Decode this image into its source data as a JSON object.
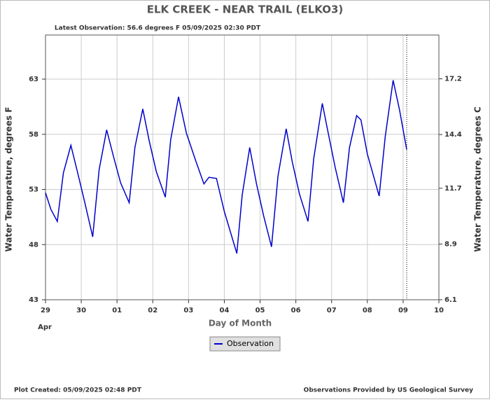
{
  "chart_data": {
    "type": "line",
    "title": "ELK CREEK - NEAR TRAIL  (ELKO3)",
    "subtitle": "Latest Observation: 56.6 degrees F  05/09/2025 02:30 PDT",
    "x_label": "Day of Month",
    "x_sublabel": "Apr",
    "y_label": "Water Temperature, degrees F",
    "y2_label": "Water Temperature, degrees C",
    "footer_left": "Plot Created: 05/09/2025 02:48 PDT",
    "footer_right": "Observations Provided by US Geological Survey",
    "xlim": [
      0,
      11
    ],
    "xticks": [
      {
        "value": 0,
        "label": "29"
      },
      {
        "value": 1,
        "label": "30"
      },
      {
        "value": 2,
        "label": "01"
      },
      {
        "value": 3,
        "label": "02"
      },
      {
        "value": 4,
        "label": "03"
      },
      {
        "value": 5,
        "label": "04"
      },
      {
        "value": 6,
        "label": "05"
      },
      {
        "value": 7,
        "label": "06"
      },
      {
        "value": 8,
        "label": "07"
      },
      {
        "value": 9,
        "label": "08"
      },
      {
        "value": 10,
        "label": "09"
      },
      {
        "value": 11,
        "label": "10"
      }
    ],
    "ylim": [
      43,
      67
    ],
    "yticks": [
      43,
      48,
      53,
      58,
      63
    ],
    "y2lim": [
      6.1,
      19.4
    ],
    "y2ticks": [
      6.1,
      8.9,
      11.7,
      14.4,
      17.2
    ],
    "grid": true,
    "latest_x": 10.1,
    "x": [
      0,
      0.15,
      0.33,
      0.5,
      0.71,
      0.9,
      1.1,
      1.32,
      1.5,
      1.71,
      1.9,
      2.1,
      2.34,
      2.5,
      2.72,
      2.9,
      3.1,
      3.35,
      3.5,
      3.72,
      3.94,
      4.2,
      4.43,
      4.57,
      4.78,
      5.0,
      5.35,
      5.5,
      5.71,
      5.9,
      6.1,
      6.32,
      6.5,
      6.73,
      6.9,
      7.1,
      7.34,
      7.5,
      7.74,
      7.9,
      8.1,
      8.33,
      8.5,
      8.7,
      8.82,
      9.0,
      9.33,
      9.5,
      9.72,
      9.9,
      10.1
    ],
    "series": [
      {
        "name": "Observation",
        "color": "#0000cc",
        "values": [
          52.7,
          51.2,
          50.1,
          54.5,
          57.0,
          54.5,
          51.8,
          48.7,
          54.8,
          58.4,
          56.0,
          53.6,
          51.8,
          56.8,
          60.3,
          57.4,
          54.6,
          52.3,
          57.5,
          61.4,
          58.1,
          55.6,
          53.5,
          54.1,
          54.0,
          51.0,
          47.2,
          52.5,
          56.8,
          53.5,
          50.6,
          47.8,
          54.2,
          58.5,
          55.5,
          52.6,
          50.1,
          55.8,
          60.8,
          58.2,
          55.0,
          51.8,
          56.8,
          59.7,
          59.3,
          56.2,
          52.4,
          57.8,
          62.9,
          60.2,
          56.6
        ]
      }
    ]
  }
}
